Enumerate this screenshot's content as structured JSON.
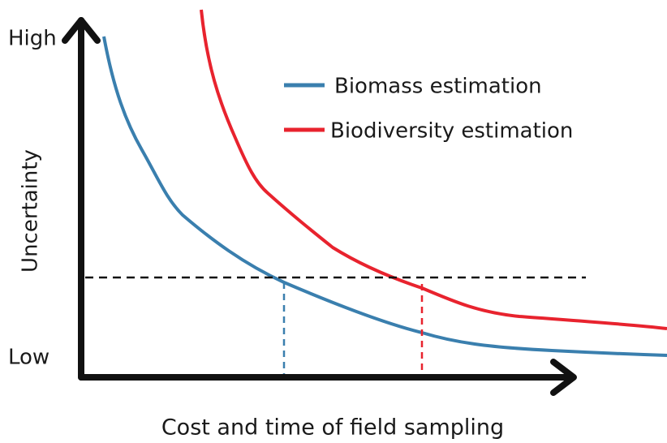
{
  "y_axis": {
    "label": "Uncertainty",
    "high": "High",
    "low": "Low"
  },
  "x_axis": {
    "label": "Cost and time of field sampling"
  },
  "legend": [
    {
      "label": "Biomass estimation"
    },
    {
      "label": "Biodiversity estimation"
    }
  ]
}
